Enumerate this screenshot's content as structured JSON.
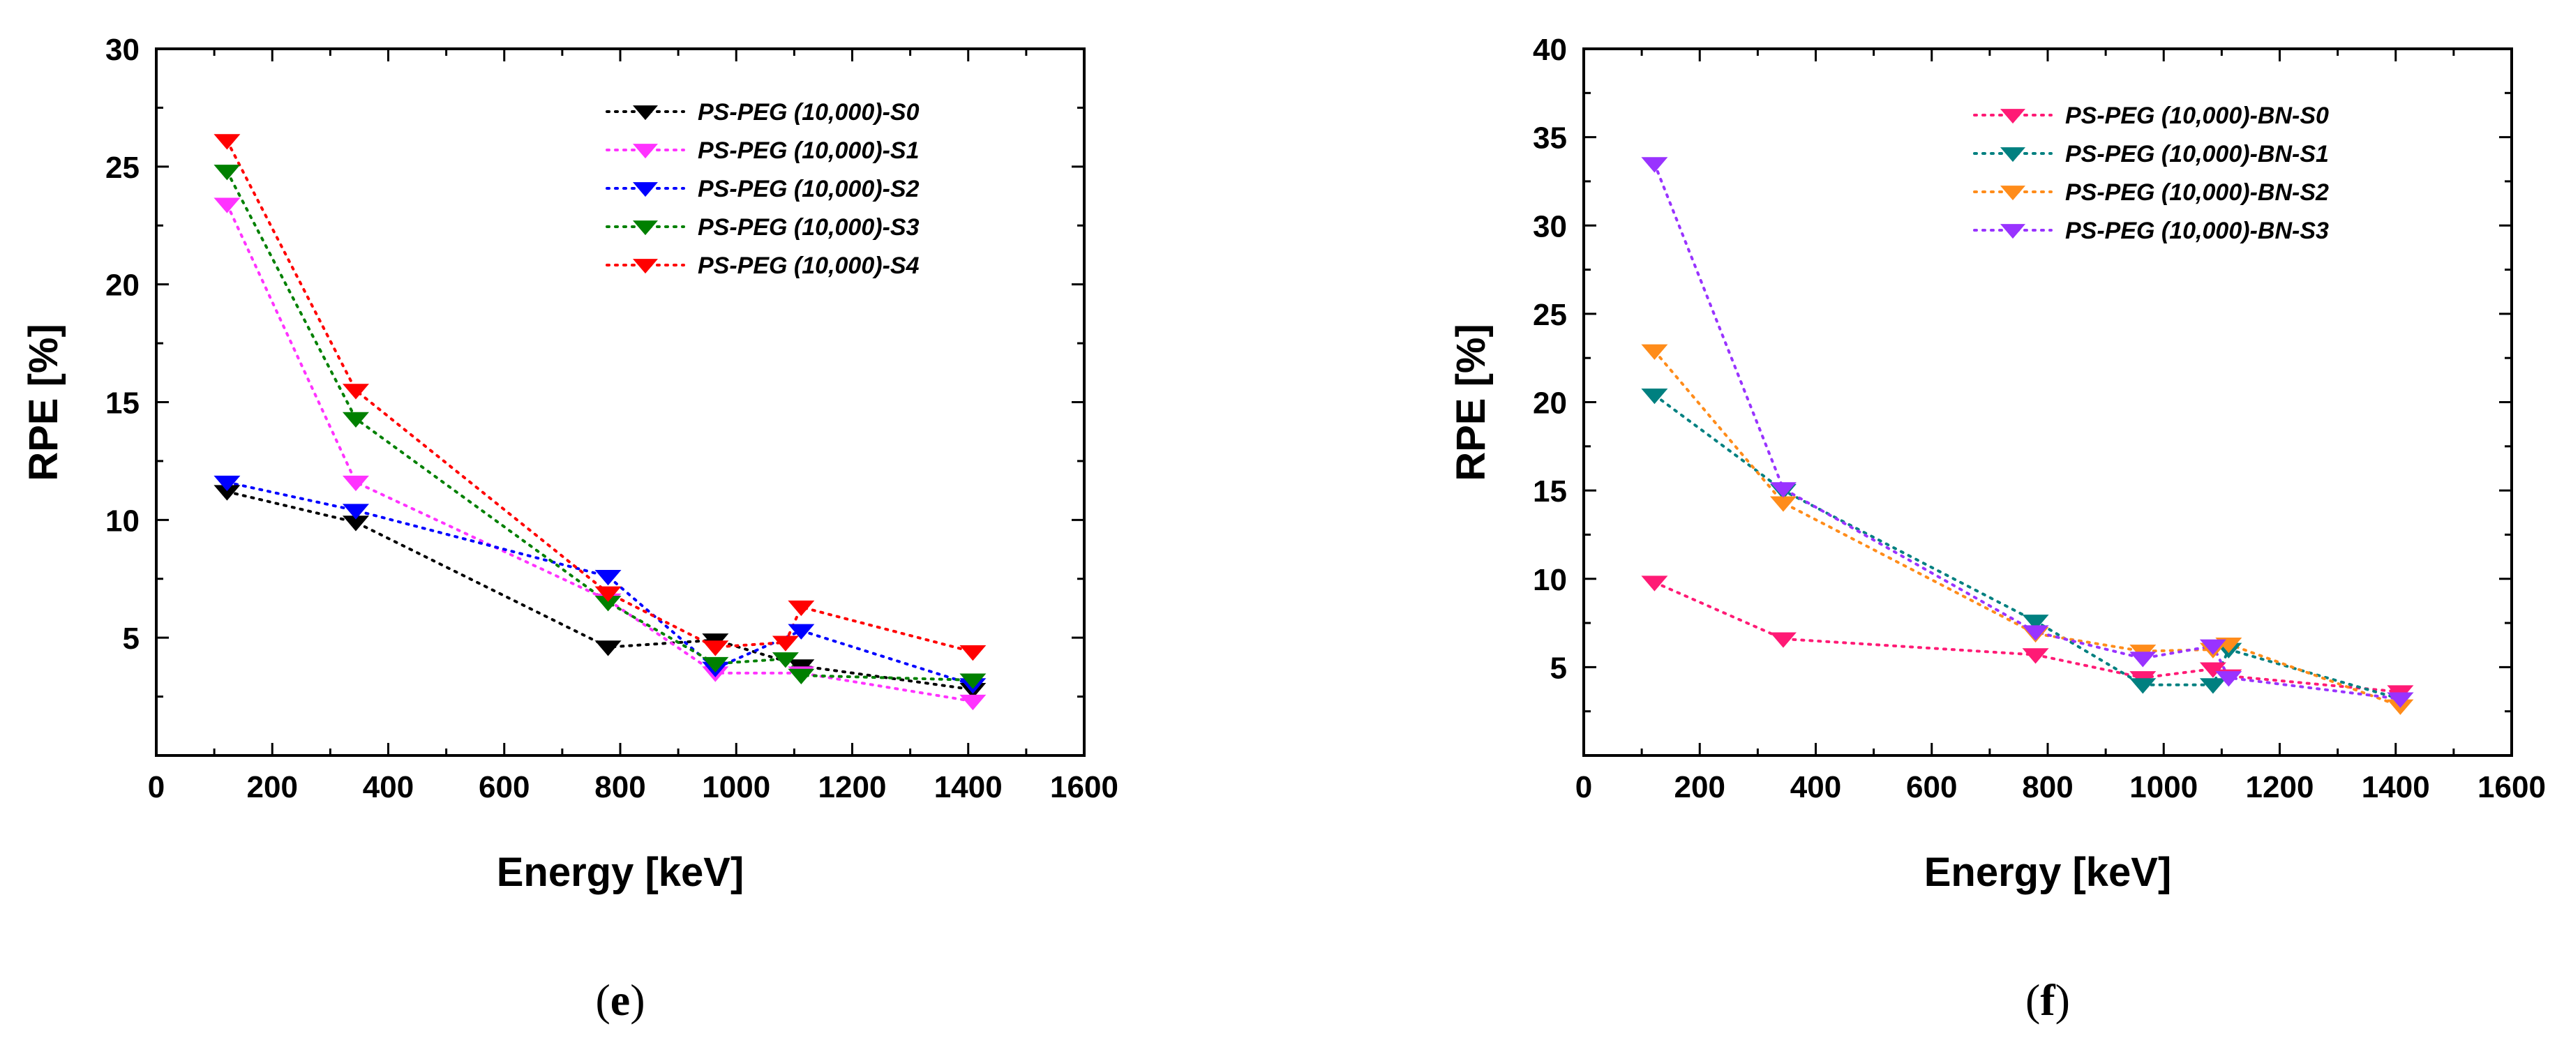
{
  "chart_data": [
    {
      "type": "scatter",
      "panel_label": {
        "open": "(",
        "letter": "e",
        "close": ")"
      },
      "xlabel": "Energy [keV]",
      "ylabel": "RPE [%]",
      "xlim": [
        0,
        1600
      ],
      "ylim": [
        0,
        30
      ],
      "xticks": [
        0,
        200,
        400,
        600,
        800,
        1000,
        1200,
        1400,
        1600
      ],
      "yticks": [
        5,
        10,
        15,
        20,
        25,
        30
      ],
      "legend_position": "top-right",
      "series": [
        {
          "name": "PS-PEG (10,000)-S0",
          "color": "#000000",
          "x": [
            122,
            344,
            779,
            964,
            1112,
            1408
          ],
          "y": [
            11.2,
            9.9,
            4.6,
            4.9,
            3.8,
            2.8
          ]
        },
        {
          "name": "PS-PEG (10,000)-S1",
          "color": "#ff33ff",
          "x": [
            122,
            344,
            779,
            964,
            1112,
            1408
          ],
          "y": [
            23.4,
            11.6,
            6.6,
            3.5,
            3.5,
            2.3
          ]
        },
        {
          "name": "PS-PEG (10,000)-S2",
          "color": "#0000ff",
          "x": [
            122,
            344,
            779,
            964,
            1112,
            1408
          ],
          "y": [
            11.6,
            10.4,
            7.6,
            3.7,
            5.3,
            3.0
          ]
        },
        {
          "name": "PS-PEG (10,000)-S3",
          "color": "#008000",
          "x": [
            122,
            344,
            779,
            964,
            1085,
            1112,
            1408
          ],
          "y": [
            24.8,
            14.3,
            6.5,
            3.9,
            4.1,
            3.4,
            3.2
          ]
        },
        {
          "name": "PS-PEG (10,000)-S4",
          "color": "#ff0000",
          "x": [
            122,
            344,
            779,
            964,
            1085,
            1112,
            1408
          ],
          "y": [
            26.1,
            15.5,
            6.9,
            4.6,
            4.8,
            6.3,
            4.4
          ]
        }
      ]
    },
    {
      "type": "scatter",
      "panel_label": {
        "open": "(",
        "letter": "f",
        "close": ")"
      },
      "xlabel": "Energy [keV]",
      "ylabel": "RPE [%]",
      "xlim": [
        0,
        1600
      ],
      "ylim": [
        0,
        40
      ],
      "xticks": [
        0,
        200,
        400,
        600,
        800,
        1000,
        1200,
        1400,
        1600
      ],
      "yticks": [
        5,
        10,
        15,
        20,
        25,
        30,
        35,
        40
      ],
      "legend_position": "top-right",
      "series": [
        {
          "name": "PS-PEG (10,000)-BN-S0",
          "color": "#ff1a75",
          "x": [
            122,
            344,
            779,
            964,
            1085,
            1112,
            1408
          ],
          "y": [
            9.8,
            6.6,
            5.7,
            4.4,
            4.9,
            4.5,
            3.6
          ]
        },
        {
          "name": "PS-PEG (10,000)-BN-S1",
          "color": "#008080",
          "x": [
            122,
            344,
            779,
            964,
            1085,
            1112,
            1408
          ],
          "y": [
            20.4,
            15.0,
            7.6,
            4.0,
            4.0,
            6.0,
            3.2
          ]
        },
        {
          "name": "PS-PEG (10,000)-BN-S2",
          "color": "#ff8c1a",
          "x": [
            122,
            344,
            779,
            964,
            1085,
            1112,
            1408
          ],
          "y": [
            22.9,
            14.3,
            6.9,
            5.9,
            6.0,
            6.3,
            2.8
          ]
        },
        {
          "name": "PS-PEG (10,000)-BN-S3",
          "color": "#9933ff",
          "x": [
            122,
            344,
            779,
            964,
            1085,
            1112,
            1408
          ],
          "y": [
            33.5,
            15.1,
            7.0,
            5.5,
            6.2,
            4.4,
            3.2
          ]
        }
      ]
    }
  ]
}
